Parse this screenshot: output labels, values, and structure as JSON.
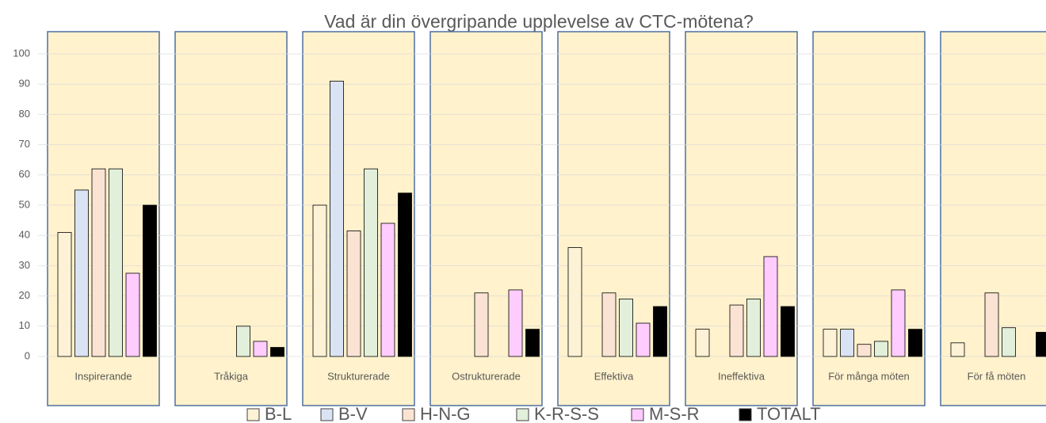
{
  "chart_data": {
    "type": "bar",
    "title": "Vad är din övergripande upplevelse av CTC-mötena?",
    "categories": [
      "Inspirerande",
      "Tråkiga",
      "Strukturerade",
      "Ostrukturerade",
      "Effektiva",
      "Ineffektiva",
      "För många möten",
      "För få möten"
    ],
    "series": [
      {
        "name": "B-L",
        "color": "#fdf2d6",
        "values": [
          41,
          0,
          50,
          0,
          36,
          9,
          9,
          4.5
        ]
      },
      {
        "name": "B-V",
        "color": "#dae3f3",
        "values": [
          55,
          0,
          91,
          0,
          0,
          0,
          9,
          0
        ]
      },
      {
        "name": "H-N-G",
        "color": "#fbe3d4",
        "values": [
          62,
          0,
          41.5,
          21,
          21,
          17,
          4,
          21
        ]
      },
      {
        "name": "K-R-S-S",
        "color": "#e2efda",
        "values": [
          62,
          10,
          62,
          0,
          19,
          19,
          5,
          9.5
        ]
      },
      {
        "name": "M-S-R",
        "color": "#ffccff",
        "values": [
          27.5,
          5,
          44,
          22,
          11,
          33,
          22,
          0
        ]
      },
      {
        "name": "TOTALT",
        "color": "#000000",
        "values": [
          50,
          3,
          54,
          9,
          16.5,
          16.5,
          9,
          8
        ]
      }
    ],
    "ylim": [
      0,
      100
    ],
    "yticks": [
      0,
      10,
      20,
      30,
      40,
      50,
      60,
      70,
      80,
      90,
      100
    ],
    "grid": true,
    "legend": "bottom"
  }
}
